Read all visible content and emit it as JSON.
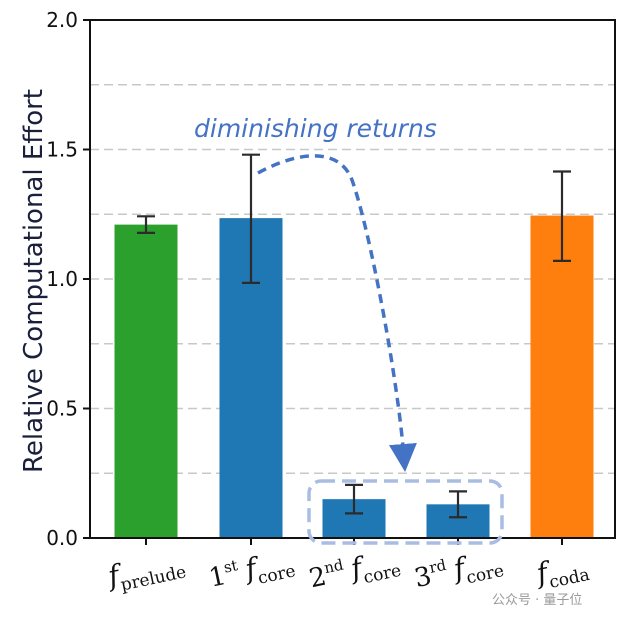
{
  "chart_data": {
    "type": "bar",
    "ylabel": "Relative Computational Effort",
    "ylim": [
      0,
      2.0
    ],
    "yticks": [
      "0.0",
      "0.5",
      "1.0",
      "1.5",
      "2.0"
    ],
    "grid": "horizontal dashed",
    "categories": [
      {
        "base": "f",
        "sub": "prelude",
        "prefix": "",
        "sup": ""
      },
      {
        "base": "f",
        "sub": "core",
        "prefix": "1",
        "sup": "st"
      },
      {
        "base": "f",
        "sub": "core",
        "prefix": "2",
        "sup": "nd"
      },
      {
        "base": "f",
        "sub": "core",
        "prefix": "3",
        "sup": "rd"
      },
      {
        "base": "f",
        "sub": "coda",
        "prefix": "",
        "sup": ""
      }
    ],
    "values": [
      1.21,
      1.235,
      0.15,
      0.13,
      1.245
    ],
    "error_low": [
      1.178,
      0.985,
      0.095,
      0.08,
      1.07
    ],
    "error_high": [
      1.242,
      1.48,
      0.205,
      0.18,
      1.415
    ],
    "colors": [
      "#2ca02c",
      "#1f77b4",
      "#1f77b4",
      "#1f77b4",
      "#ff7f0e"
    ],
    "annotation": "diminishing returns",
    "annotation_color": "#4472c4"
  },
  "watermark": "公众号 · 量子位"
}
